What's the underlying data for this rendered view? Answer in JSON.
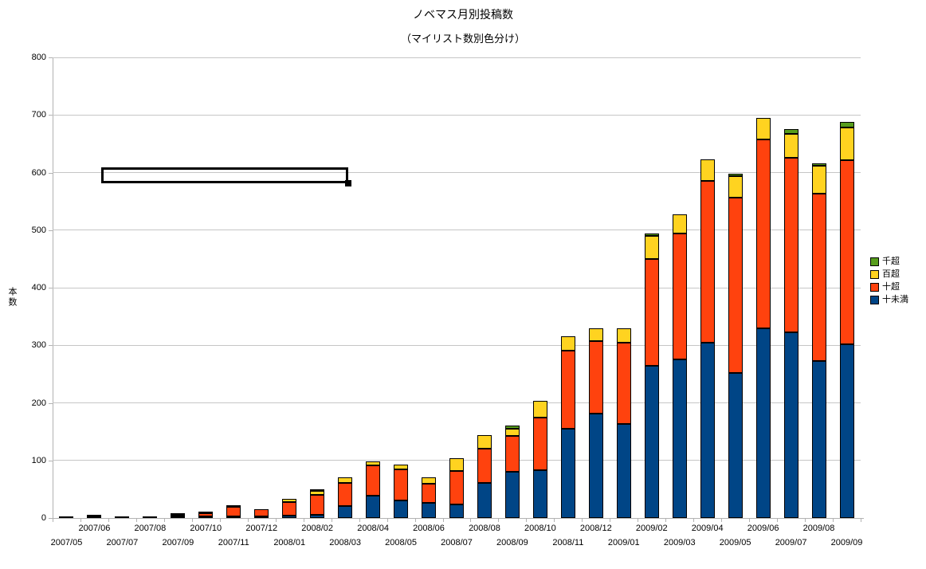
{
  "header": {
    "title": "ノベマス月別投稿数",
    "subtitle": "（マイリスト数別色分け）"
  },
  "legend": {
    "position": "right",
    "items": [
      {
        "label": "千超",
        "color": "#579D1C"
      },
      {
        "label": "百超",
        "color": "#FFD320"
      },
      {
        "label": "十超",
        "color": "#FF420E"
      },
      {
        "label": "十未満",
        "color": "#004586"
      }
    ]
  },
  "chart_data": {
    "type": "bar",
    "stacked": true,
    "title": "ノベマス月別投稿数",
    "subtitle": "（マイリスト数別色分け）",
    "xlabel": "",
    "ylabel": "本数",
    "ylim": [
      0,
      800
    ],
    "ytick_interval": 100,
    "ytick_labels": [
      "0",
      "100",
      "200",
      "300",
      "400",
      "500",
      "600",
      "700",
      "800"
    ],
    "grid": true,
    "legend_position": "right",
    "categories": [
      "2007/05",
      "2007/06",
      "2007/07",
      "2007/08",
      "2007/09",
      "2007/10",
      "2007/11",
      "2007/12",
      "2008/01",
      "2008/02",
      "2008/03",
      "2008/04",
      "2008/05",
      "2008/06",
      "2008/07",
      "2008/08",
      "2008/09",
      "2008/10",
      "2008/11",
      "2008/12",
      "2009/01",
      "2009/02",
      "2009/03",
      "2009/04",
      "2009/05",
      "2009/06",
      "2009/07",
      "2009/08",
      "2009/09"
    ],
    "series": [
      {
        "name": "十未満",
        "color": "#004586",
        "values": [
          2,
          1,
          0,
          2,
          2,
          2,
          1,
          2,
          4,
          6,
          21,
          39,
          30,
          26,
          24,
          61,
          80,
          83,
          155,
          181,
          164,
          265,
          276,
          304,
          252,
          330,
          323,
          272,
          302
        ]
      },
      {
        "name": "十超",
        "color": "#FF420E",
        "values": [
          0,
          0,
          0,
          0,
          2,
          5,
          16,
          12,
          24,
          34,
          40,
          53,
          55,
          33,
          58,
          59,
          63,
          92,
          135,
          126,
          141,
          185,
          218,
          282,
          305,
          327,
          303,
          291,
          319
        ]
      },
      {
        "name": "百超",
        "color": "#FFD320",
        "values": [
          0,
          3,
          3,
          0,
          2,
          3,
          1,
          0,
          5,
          7,
          9,
          6,
          8,
          11,
          22,
          24,
          12,
          29,
          25,
          23,
          25,
          40,
          33,
          37,
          37,
          38,
          41,
          49,
          57
        ]
      },
      {
        "name": "千超",
        "color": "#579D1C",
        "values": [
          0,
          0,
          0,
          0,
          0,
          0,
          0,
          0,
          0,
          1,
          0,
          0,
          0,
          0,
          0,
          0,
          5,
          0,
          0,
          0,
          0,
          4,
          0,
          0,
          4,
          0,
          9,
          4,
          10
        ]
      }
    ]
  }
}
